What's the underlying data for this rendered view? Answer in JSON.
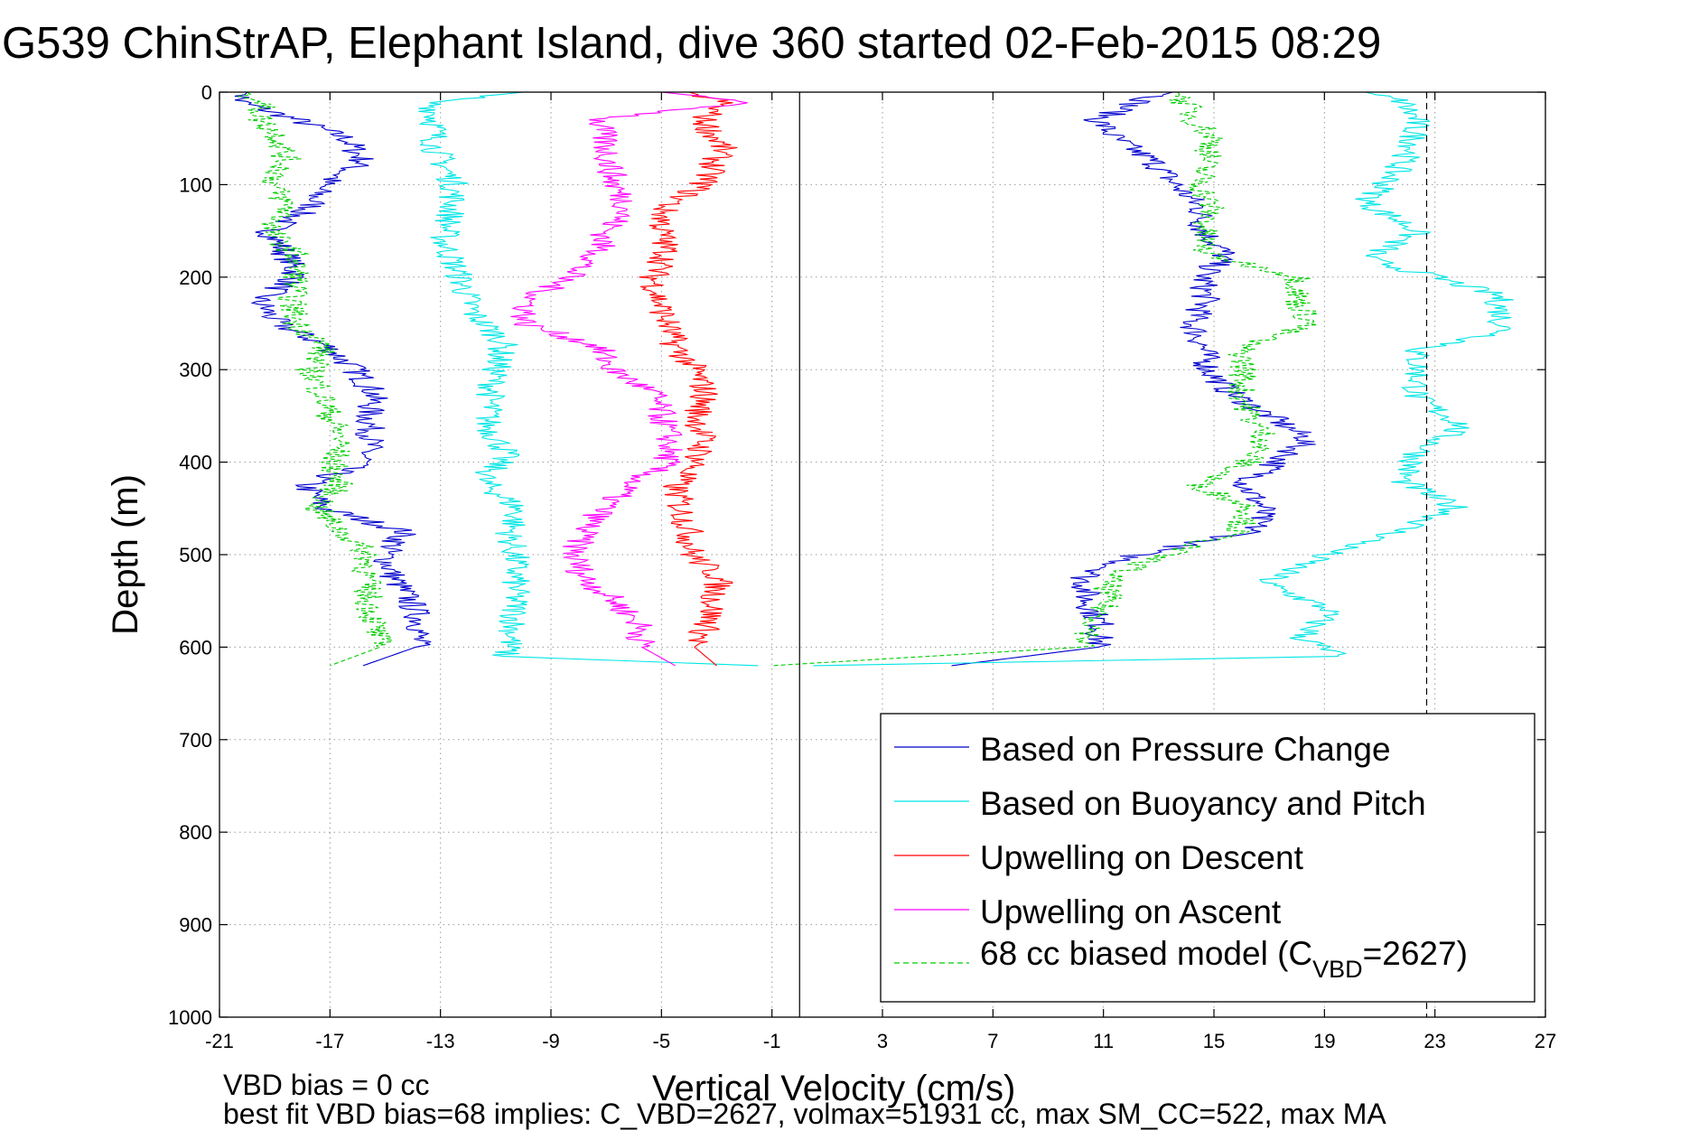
{
  "chart_data": {
    "type": "line",
    "title": "G539 ChinStrAP, Elephant Island, dive 360 started 02-Feb-2015 08:29",
    "xlabel": "Vertical Velocity (cm/s)",
    "ylabel": "Depth (m)",
    "xlim": [
      -21,
      27
    ],
    "ylim": [
      0,
      1000
    ],
    "y_reversed": true,
    "grid": true,
    "x_ticks": [
      -21,
      -17,
      -13,
      -9,
      -5,
      -1,
      3,
      7,
      11,
      15,
      19,
      23,
      27
    ],
    "y_ticks": [
      0,
      100,
      200,
      300,
      400,
      500,
      600,
      700,
      800,
      900,
      1000
    ],
    "x_tick_labels": [
      "-21",
      "-17",
      "-13",
      "-9",
      "-5",
      "-1",
      "3",
      "7",
      "11",
      "15",
      "19",
      "23",
      "27"
    ],
    "y_tick_labels": [
      "0",
      "100",
      "200",
      "300",
      "400",
      "500",
      "600",
      "700",
      "800",
      "900",
      "1000"
    ],
    "reference_lines": {
      "solid_x": 0,
      "dashed_x": 22.7
    },
    "legend_position": "lower-right",
    "legend": [
      {
        "label": "Based on Pressure Change",
        "color": "#0000cc",
        "style": "solid"
      },
      {
        "label": "Based on Buoyancy and Pitch",
        "color": "#00e5e5",
        "style": "solid"
      },
      {
        "label": "Upwelling on Descent",
        "color": "#ff0000",
        "style": "solid"
      },
      {
        "label": "Upwelling on Ascent",
        "color": "#ff00ff",
        "style": "solid"
      },
      {
        "label_prefix": "68 cc biased model (C",
        "label_sub": "VBD",
        "label_suffix": "=2627)",
        "color": "#00cc00",
        "style": "dashed"
      }
    ],
    "series": [
      {
        "name": "Based on Pressure Change",
        "color": "#0000cc",
        "style": "solid",
        "segments": [
          {
            "depth": [
              0,
              10,
              30,
              50,
              75,
              100,
              125,
              150,
              175,
              200,
              225,
              250,
              275,
              300,
              325,
              350,
              375,
              400,
              425,
              450,
              475,
              500,
              525,
              550,
              575,
              600,
              620
            ],
            "values": [
              -20.0,
              -20.3,
              -18.2,
              -16.4,
              -15.8,
              -17.3,
              -17.7,
              -19.2,
              -18.6,
              -18.2,
              -19.6,
              -18.9,
              -17.1,
              -16.1,
              -15.4,
              -15.6,
              -15.5,
              -15.8,
              -17.9,
              -17.2,
              -14.3,
              -15.0,
              -14.7,
              -14.1,
              -13.7,
              -13.9,
              -15.8
            ]
          },
          {
            "depth": [
              0,
              10,
              30,
              50,
              75,
              100,
              125,
              150,
              175,
              200,
              225,
              250,
              275,
              300,
              325,
              350,
              375,
              400,
              425,
              450,
              475,
              500,
              525,
              550,
              575,
              600,
              620
            ],
            "values": [
              13.5,
              12.3,
              10.8,
              11.4,
              12.8,
              13.6,
              14.5,
              14.6,
              15.4,
              14.6,
              14.7,
              14.2,
              14.6,
              14.8,
              15.6,
              17.0,
              18.4,
              17.3,
              16.1,
              16.8,
              16.4,
              12.2,
              10.3,
              10.4,
              10.9,
              10.8,
              5.5
            ]
          }
        ]
      },
      {
        "name": "Based on Buoyancy and Pitch",
        "color": "#00e5e5",
        "style": "solid",
        "segments": [
          {
            "depth": [
              0,
              10,
              30,
              60,
              100,
              130,
              160,
              200,
              240,
              270,
              300,
              330,
              360,
              390,
              420,
              450,
              480,
              500,
              530,
              560,
              590,
              610,
              620
            ],
            "values": [
              -10.0,
              -13.3,
              -13.2,
              -13.2,
              -12.5,
              -12.6,
              -12.9,
              -12.3,
              -11.8,
              -10.7,
              -11.0,
              -11.2,
              -11.3,
              -10.6,
              -11.5,
              -10.2,
              -10.5,
              -10.3,
              -10.3,
              -10.3,
              -10.4,
              -10.7,
              -1.5
            ]
          },
          {
            "depth": [
              0,
              10,
              30,
              60,
              100,
              120,
              150,
              180,
              200,
              220,
              260,
              280,
              300,
              330,
              360,
              390,
              420,
              450,
              480,
              500,
              530,
              560,
              590,
              610,
              620
            ],
            "values": [
              20.5,
              21.8,
              22.3,
              22.2,
              21.2,
              20.5,
              22.4,
              20.5,
              23.0,
              25.3,
              25.5,
              22.3,
              22.4,
              22.3,
              24.0,
              22.4,
              21.8,
              23.8,
              21.2,
              19.0,
              16.8,
              19.2,
              18.2,
              19.5,
              0.5
            ]
          }
        ]
      },
      {
        "name": "Upwelling on Descent",
        "color": "#ff0000",
        "style": "solid",
        "segments": [
          {
            "depth": [
              0,
              10,
              30,
              60,
              100,
              125,
              150,
              175,
              200,
              225,
              250,
              275,
              300,
              325,
              350,
              375,
              400,
              425,
              450,
              475,
              500,
              525,
              550,
              575,
              600,
              620
            ],
            "values": [
              -4.0,
              -2.8,
              -3.5,
              -2.8,
              -3.5,
              -4.9,
              -5.0,
              -4.8,
              -5.3,
              -5.1,
              -4.8,
              -4.5,
              -3.8,
              -3.4,
              -3.7,
              -3.5,
              -3.7,
              -4.5,
              -4.3,
              -4.0,
              -3.9,
              -2.9,
              -3.1,
              -3.3,
              -3.8,
              -3.0
            ]
          }
        ]
      },
      {
        "name": "Upwelling on Ascent",
        "color": "#ff00ff",
        "style": "solid",
        "segments": [
          {
            "depth": [
              0,
              10,
              30,
              60,
              100,
              125,
              150,
              175,
              200,
              225,
              250,
              275,
              300,
              325,
              350,
              375,
              400,
              425,
              450,
              475,
              500,
              525,
              550,
              575,
              600,
              620
            ],
            "values": [
              -5.0,
              -1.8,
              -7.3,
              -7.0,
              -6.7,
              -6.2,
              -7.0,
              -7.3,
              -8.4,
              -9.8,
              -10.0,
              -7.3,
              -6.8,
              -5.3,
              -5.0,
              -4.7,
              -4.8,
              -6.2,
              -7.1,
              -7.8,
              -8.2,
              -7.8,
              -6.7,
              -5.8,
              -5.7,
              -4.5
            ]
          }
        ]
      },
      {
        "name": "68 cc biased model (CVBD=2627)",
        "color": "#00cc00",
        "style": "dashed",
        "segments": [
          {
            "depth": [
              0,
              10,
              30,
              50,
              75,
              100,
              125,
              150,
              175,
              200,
              225,
              250,
              275,
              300,
              325,
              350,
              375,
              400,
              425,
              450,
              475,
              500,
              525,
              550,
              575,
              600,
              620
            ],
            "values": [
              -20.0,
              -19.5,
              -19.5,
              -18.8,
              -18.6,
              -19.1,
              -18.5,
              -19.2,
              -18.3,
              -18.2,
              -18.4,
              -18.2,
              -17.2,
              -17.7,
              -17.3,
              -17.0,
              -16.6,
              -16.9,
              -16.7,
              -17.5,
              -16.6,
              -15.6,
              -15.7,
              -15.6,
              -15.4,
              -15.2,
              -17.0
            ]
          },
          {
            "depth": [
              0,
              10,
              30,
              50,
              75,
              100,
              125,
              150,
              175,
              200,
              225,
              250,
              275,
              300,
              325,
              350,
              375,
              400,
              425,
              450,
              475,
              500,
              525,
              550,
              575,
              600,
              620
            ],
            "values": [
              13.7,
              13.9,
              14.3,
              15.0,
              14.7,
              14.5,
              14.9,
              14.6,
              14.7,
              18.1,
              18.0,
              18.5,
              16.0,
              16.1,
              16.0,
              16.3,
              16.9,
              16.2,
              14.4,
              16.4,
              15.8,
              13.2,
              11.2,
              11.1,
              10.7,
              10.2,
              -1.0
            ]
          }
        ]
      }
    ]
  },
  "footer": {
    "line1": "VBD bias = 0 cc",
    "line2": "best fit VBD bias=68 implies: C_VBD=2627, volmax=51931 cc, max SM_CC=522, max MA"
  }
}
